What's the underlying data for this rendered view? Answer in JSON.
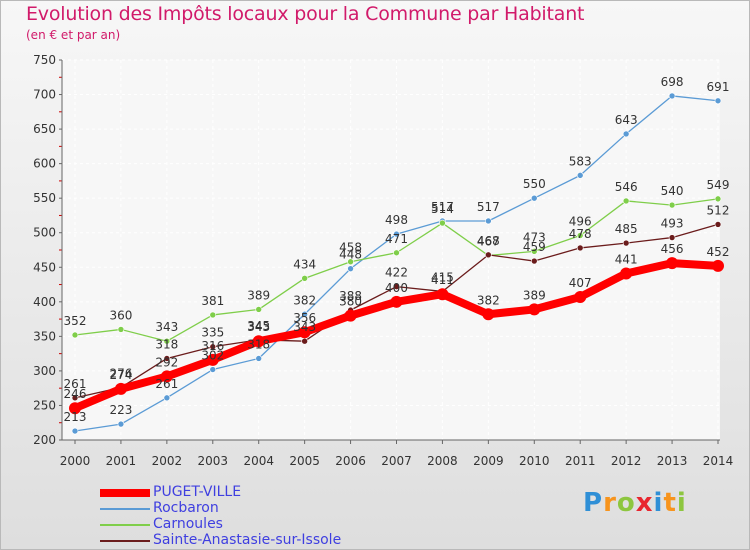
{
  "title": "Evolution des Impôts locaux pour la Commune par Habitant",
  "subtitle": "(en € et par an)",
  "logo": {
    "letters": [
      "P",
      "r",
      "o",
      "x",
      "i",
      "t",
      "i"
    ],
    "colors": [
      "#2f8fd6",
      "#f7941d",
      "#8dc63f",
      "#e8262f",
      "#2f8fd6",
      "#f7941d",
      "#8dc63f"
    ]
  },
  "chart_data": {
    "type": "line",
    "title": "Evolution des Impôts locaux pour la Commune par Habitant",
    "subtitle": "(en € et par an)",
    "x": [
      "2000",
      "2001",
      "2002",
      "2003",
      "2004",
      "2005",
      "2006",
      "2007",
      "2008",
      "2009",
      "2010",
      "2011",
      "2012",
      "2013",
      "2014"
    ],
    "yticks": [
      200,
      250,
      300,
      350,
      400,
      450,
      500,
      550,
      600,
      650,
      700,
      750
    ],
    "ylim": [
      200,
      750
    ],
    "grid": true,
    "legend_position": "bottom-left",
    "series": [
      {
        "name": "PUGET-VILLE",
        "color": "#ff0000",
        "values": [
          246,
          274,
          292,
          316,
          343,
          356,
          380,
          400,
          411,
          382,
          389,
          407,
          441,
          456,
          452
        ]
      },
      {
        "name": "Rocbaron",
        "color": "#5b9bd5",
        "values": [
          213,
          223,
          261,
          302,
          318,
          382,
          448,
          498,
          517,
          517,
          550,
          583,
          643,
          698,
          691
        ]
      },
      {
        "name": "Carnoules",
        "color": "#7fce4a",
        "values": [
          352,
          360,
          343,
          381,
          389,
          434,
          458,
          471,
          514,
          467,
          473,
          496,
          546,
          540,
          549
        ]
      },
      {
        "name": "Sainte-Anastasie-sur-Issole",
        "color": "#6b1c1c",
        "values": [
          261,
          276,
          318,
          335,
          345,
          343,
          388,
          422,
          415,
          468,
          459,
          478,
          485,
          493,
          512
        ]
      }
    ]
  }
}
